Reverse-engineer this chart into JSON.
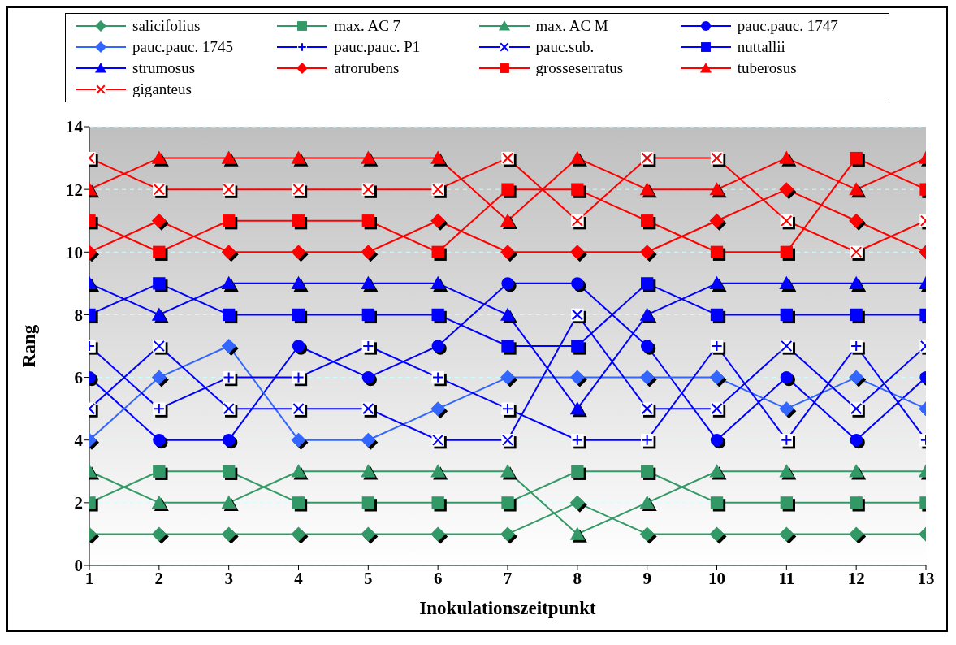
{
  "chart_data": {
    "type": "line",
    "xlabel": "Inokulationszeitpunkt",
    "ylabel": "Rang",
    "x": [
      1,
      2,
      3,
      4,
      5,
      6,
      7,
      8,
      9,
      10,
      11,
      12,
      13
    ],
    "xlim": [
      1,
      13
    ],
    "xticks": [
      1,
      2,
      3,
      4,
      5,
      6,
      7,
      8,
      9,
      10,
      11,
      12,
      13
    ],
    "ylim": [
      0,
      14
    ],
    "yticks": [
      0,
      2,
      4,
      6,
      8,
      10,
      12,
      14
    ],
    "grid": "y",
    "legend": "top",
    "line_style": "solid",
    "series": [
      {
        "name": "salicifolius",
        "color": "#339966",
        "marker": "diamond",
        "values": [
          1,
          1,
          1,
          1,
          1,
          1,
          1,
          2,
          1,
          1,
          1,
          1,
          1
        ]
      },
      {
        "name": "max. AC 7",
        "color": "#339966",
        "marker": "square",
        "values": [
          2,
          3,
          3,
          2,
          2,
          2,
          2,
          3,
          3,
          2,
          2,
          2,
          2
        ]
      },
      {
        "name": "max. AC M",
        "color": "#339966",
        "marker": "triangle",
        "values": [
          3,
          2,
          2,
          3,
          3,
          3,
          3,
          1,
          2,
          3,
          3,
          3,
          3
        ]
      },
      {
        "name": "pauc.pauc. 1747",
        "color": "#0000ff",
        "marker": "circle",
        "values": [
          6,
          4,
          4,
          7,
          6,
          7,
          9,
          9,
          7,
          4,
          6,
          4,
          6
        ]
      },
      {
        "name": "pauc.pauc. 1745",
        "color": "#3366ff",
        "marker": "diamond",
        "values": [
          4,
          6,
          7,
          4,
          4,
          5,
          6,
          6,
          6,
          6,
          5,
          6,
          5
        ]
      },
      {
        "name": "pauc.pauc. P1",
        "color": "#0000ff",
        "marker": "plus",
        "values": [
          7,
          5,
          6,
          6,
          7,
          6,
          5,
          4,
          4,
          7,
          4,
          7,
          4
        ]
      },
      {
        "name": "pauc.sub.",
        "color": "#0000ff",
        "marker": "cross",
        "values": [
          5,
          7,
          5,
          5,
          5,
          4,
          4,
          8,
          5,
          5,
          7,
          5,
          7
        ]
      },
      {
        "name": "nuttallii",
        "color": "#0000ff",
        "marker": "square",
        "values": [
          8,
          9,
          8,
          8,
          8,
          8,
          7,
          7,
          9,
          8,
          8,
          8,
          8
        ]
      },
      {
        "name": "strumosus",
        "color": "#0000ff",
        "marker": "triangle",
        "values": [
          9,
          8,
          9,
          9,
          9,
          9,
          8,
          5,
          8,
          9,
          9,
          9,
          9
        ]
      },
      {
        "name": "atrorubens",
        "color": "#ff0000",
        "marker": "diamond",
        "values": [
          10,
          11,
          10,
          10,
          10,
          11,
          10,
          10,
          10,
          11,
          12,
          11,
          10
        ]
      },
      {
        "name": "grosseserratus",
        "color": "#ff0000",
        "marker": "square",
        "values": [
          11,
          10,
          11,
          11,
          11,
          10,
          12,
          12,
          11,
          10,
          10,
          13,
          12
        ]
      },
      {
        "name": "tuberosus",
        "color": "#ff0000",
        "marker": "triangle",
        "values": [
          12,
          13,
          13,
          13,
          13,
          13,
          11,
          13,
          12,
          12,
          13,
          12,
          13
        ]
      },
      {
        "name": "giganteus",
        "color": "#ff0000",
        "marker": "cross",
        "values": [
          13,
          12,
          12,
          12,
          12,
          12,
          13,
          11,
          13,
          13,
          11,
          10,
          11
        ]
      }
    ]
  }
}
